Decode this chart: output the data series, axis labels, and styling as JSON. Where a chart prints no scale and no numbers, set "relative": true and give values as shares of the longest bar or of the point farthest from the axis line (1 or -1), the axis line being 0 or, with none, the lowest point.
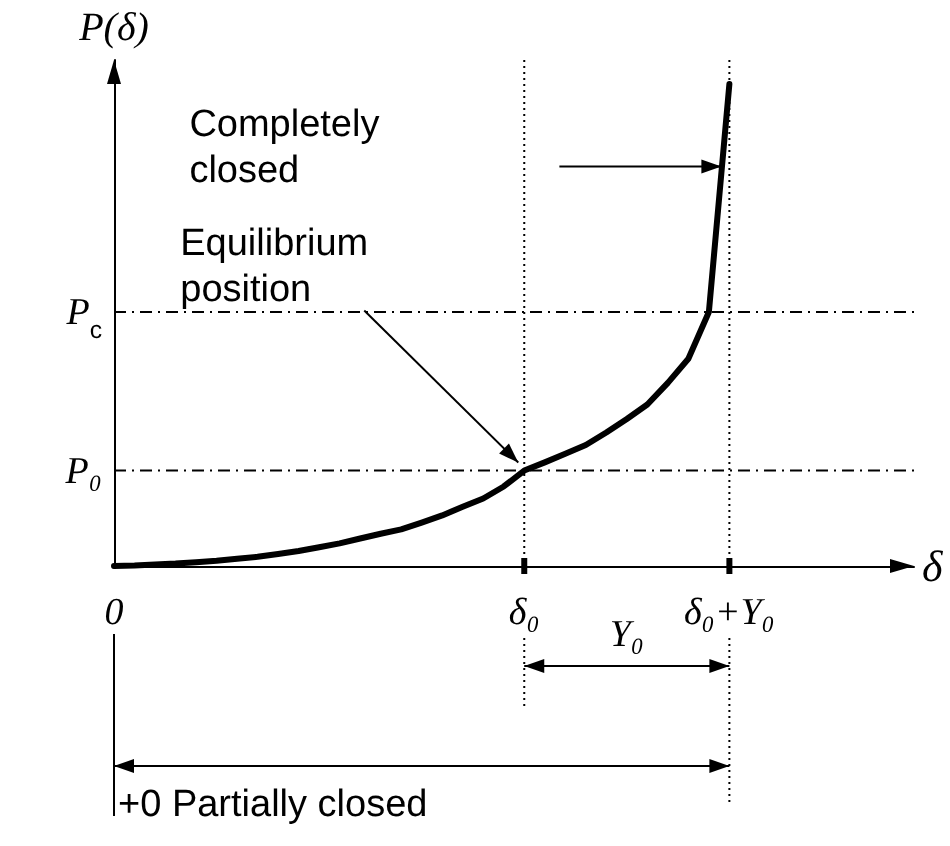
{
  "chart_data": {
    "type": "line",
    "relative": true,
    "xlabel": "δ",
    "ylabel": "P(δ)",
    "categories": [
      "0",
      null,
      null,
      null,
      null,
      null,
      null,
      null,
      null,
      null,
      null,
      null,
      null,
      null,
      null,
      null,
      null,
      null,
      null,
      null,
      "δ₀",
      null,
      null,
      null,
      null,
      null,
      null,
      null,
      null,
      null,
      "δ₀+Y₀",
      null,
      null,
      null,
      null,
      null,
      null,
      null,
      null,
      null
    ],
    "series": [
      {
        "color": "#000000",
        "values": [
          0,
          0.001,
          0.003,
          0.005,
          0.008,
          0.011,
          0.015,
          0.019,
          0.025,
          0.031,
          0.039,
          0.047,
          0.057,
          0.067,
          0.076,
          0.09,
          0.105,
          0.123,
          0.14,
          0.165,
          0.198,
          0.215,
          0.233,
          0.251,
          0.277,
          0.305,
          0.335,
          0.38,
          0.43,
          0.527,
          1,
          null,
          null,
          null,
          null,
          null,
          null,
          null,
          null,
          null
        ]
      }
    ],
    "ref_lines": [
      {
        "axis": "y",
        "value": 0.527,
        "label": "P$_{c}$",
        "line_style": "dashdot"
      },
      {
        "axis": "y",
        "value": 0.198,
        "label": "P₀",
        "line_style": "dashdot"
      },
      {
        "axis": "x",
        "value": "δ₀",
        "line_style": "dotted"
      },
      {
        "axis": "x",
        "value": "δ₀+Y₀",
        "line_style": "dotted"
      }
    ],
    "annotations": [
      "Completely closed",
      {
        "text": "Equilibrium position",
        "x": "δ₀",
        "y": 0.198
      },
      "Y₀",
      "+0 Partially closed"
    ],
    "grid": false,
    "marker": "none",
    "line_style": "solid"
  }
}
